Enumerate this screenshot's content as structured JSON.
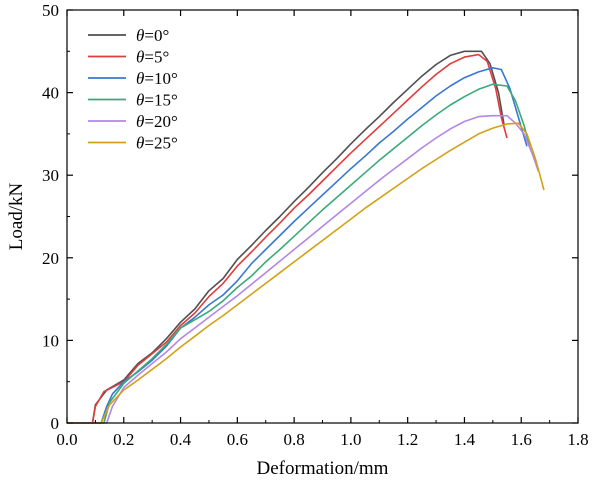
{
  "chart_data": {
    "type": "line",
    "title": "",
    "xlabel": "Deformation/mm",
    "ylabel": "Load/kN",
    "xlim": [
      0,
      1.8
    ],
    "ylim": [
      0,
      50
    ],
    "xticks": [
      "0.0",
      "0.2",
      "0.4",
      "0.6",
      "0.8",
      "1.0",
      "1.2",
      "1.4",
      "1.6",
      "1.8"
    ],
    "yticks": [
      "0",
      "10",
      "20",
      "30",
      "40",
      "50"
    ],
    "grid": false,
    "legend_position": "top-left",
    "series": [
      {
        "name": "θ=0°",
        "legend_prefix": "θ",
        "legend_suffix": "=0°",
        "color": "#505050",
        "points": [
          [
            0.0,
            0
          ],
          [
            0.09,
            0
          ],
          [
            0.1,
            2.2
          ],
          [
            0.14,
            4.0
          ],
          [
            0.2,
            5.2
          ],
          [
            0.25,
            7.2
          ],
          [
            0.3,
            8.5
          ],
          [
            0.35,
            10.2
          ],
          [
            0.4,
            12.2
          ],
          [
            0.45,
            13.8
          ],
          [
            0.5,
            16.0
          ],
          [
            0.55,
            17.5
          ],
          [
            0.6,
            19.8
          ],
          [
            0.65,
            21.5
          ],
          [
            0.7,
            23.3
          ],
          [
            0.75,
            25.0
          ],
          [
            0.8,
            26.8
          ],
          [
            0.85,
            28.5
          ],
          [
            0.9,
            30.3
          ],
          [
            0.95,
            32.0
          ],
          [
            1.0,
            33.8
          ],
          [
            1.05,
            35.5
          ],
          [
            1.1,
            37.1
          ],
          [
            1.15,
            38.8
          ],
          [
            1.2,
            40.4
          ],
          [
            1.25,
            42.0
          ],
          [
            1.3,
            43.4
          ],
          [
            1.35,
            44.5
          ],
          [
            1.4,
            45.0
          ],
          [
            1.46,
            45.0
          ],
          [
            1.49,
            43.5
          ],
          [
            1.52,
            40.0
          ],
          [
            1.54,
            36.0
          ]
        ]
      },
      {
        "name": "θ=5°",
        "legend_prefix": "θ",
        "legend_suffix": "=5°",
        "color": "#e03c3c",
        "points": [
          [
            0.0,
            0
          ],
          [
            0.09,
            0
          ],
          [
            0.1,
            2.0
          ],
          [
            0.13,
            3.8
          ],
          [
            0.2,
            5.0
          ],
          [
            0.25,
            7.0
          ],
          [
            0.3,
            8.4
          ],
          [
            0.35,
            9.8
          ],
          [
            0.4,
            11.8
          ],
          [
            0.45,
            13.3
          ],
          [
            0.5,
            15.3
          ],
          [
            0.55,
            16.9
          ],
          [
            0.6,
            19.0
          ],
          [
            0.65,
            20.7
          ],
          [
            0.7,
            22.5
          ],
          [
            0.75,
            24.2
          ],
          [
            0.8,
            26.0
          ],
          [
            0.85,
            27.6
          ],
          [
            0.9,
            29.3
          ],
          [
            0.95,
            31.0
          ],
          [
            1.0,
            32.7
          ],
          [
            1.05,
            34.3
          ],
          [
            1.1,
            35.9
          ],
          [
            1.15,
            37.5
          ],
          [
            1.2,
            39.1
          ],
          [
            1.25,
            40.7
          ],
          [
            1.3,
            42.2
          ],
          [
            1.35,
            43.5
          ],
          [
            1.4,
            44.3
          ],
          [
            1.45,
            44.6
          ],
          [
            1.48,
            43.8
          ],
          [
            1.51,
            40.5
          ],
          [
            1.53,
            37.0
          ],
          [
            1.55,
            34.5
          ]
        ]
      },
      {
        "name": "θ=10°",
        "legend_prefix": "θ",
        "legend_suffix": "=10°",
        "color": "#3a78d0",
        "points": [
          [
            0.0,
            0
          ],
          [
            0.12,
            0
          ],
          [
            0.14,
            2.0
          ],
          [
            0.16,
            3.5
          ],
          [
            0.2,
            5.0
          ],
          [
            0.25,
            6.2
          ],
          [
            0.3,
            7.6
          ],
          [
            0.35,
            9.3
          ],
          [
            0.4,
            11.5
          ],
          [
            0.45,
            12.8
          ],
          [
            0.5,
            14.3
          ],
          [
            0.55,
            15.5
          ],
          [
            0.6,
            17.2
          ],
          [
            0.65,
            19.3
          ],
          [
            0.7,
            21.0
          ],
          [
            0.75,
            22.7
          ],
          [
            0.8,
            24.4
          ],
          [
            0.85,
            26.0
          ],
          [
            0.9,
            27.6
          ],
          [
            0.95,
            29.2
          ],
          [
            1.0,
            30.8
          ],
          [
            1.05,
            32.3
          ],
          [
            1.1,
            33.9
          ],
          [
            1.15,
            35.3
          ],
          [
            1.2,
            36.8
          ],
          [
            1.25,
            38.2
          ],
          [
            1.3,
            39.6
          ],
          [
            1.35,
            40.8
          ],
          [
            1.4,
            41.8
          ],
          [
            1.45,
            42.5
          ],
          [
            1.5,
            43.0
          ],
          [
            1.53,
            42.8
          ],
          [
            1.56,
            40.5
          ],
          [
            1.59,
            37.0
          ],
          [
            1.62,
            33.5
          ]
        ]
      },
      {
        "name": "θ=15°",
        "legend_prefix": "θ",
        "legend_suffix": "=15°",
        "color": "#3aaa78",
        "points": [
          [
            0.0,
            0
          ],
          [
            0.13,
            0
          ],
          [
            0.15,
            2.5
          ],
          [
            0.2,
            4.8
          ],
          [
            0.25,
            6.3
          ],
          [
            0.3,
            7.8
          ],
          [
            0.35,
            9.5
          ],
          [
            0.4,
            11.5
          ],
          [
            0.45,
            12.5
          ],
          [
            0.5,
            13.5
          ],
          [
            0.55,
            14.8
          ],
          [
            0.6,
            16.4
          ],
          [
            0.65,
            17.8
          ],
          [
            0.7,
            19.5
          ],
          [
            0.75,
            21.0
          ],
          [
            0.8,
            22.6
          ],
          [
            0.85,
            24.2
          ],
          [
            0.9,
            25.8
          ],
          [
            0.95,
            27.3
          ],
          [
            1.0,
            28.8
          ],
          [
            1.05,
            30.3
          ],
          [
            1.1,
            31.8
          ],
          [
            1.15,
            33.2
          ],
          [
            1.2,
            34.6
          ],
          [
            1.25,
            36.0
          ],
          [
            1.3,
            37.3
          ],
          [
            1.35,
            38.5
          ],
          [
            1.4,
            39.5
          ],
          [
            1.45,
            40.4
          ],
          [
            1.5,
            41.0
          ],
          [
            1.55,
            40.8
          ],
          [
            1.58,
            39.0
          ],
          [
            1.61,
            36.0
          ],
          [
            1.63,
            33.5
          ]
        ]
      },
      {
        "name": "θ=20°",
        "legend_prefix": "θ",
        "legend_suffix": "=20°",
        "color": "#b387e6",
        "points": [
          [
            0.0,
            0
          ],
          [
            0.14,
            0
          ],
          [
            0.16,
            2.0
          ],
          [
            0.2,
            4.3
          ],
          [
            0.25,
            5.8
          ],
          [
            0.3,
            7.2
          ],
          [
            0.35,
            8.6
          ],
          [
            0.4,
            10.2
          ],
          [
            0.45,
            11.5
          ],
          [
            0.5,
            12.8
          ],
          [
            0.55,
            14.1
          ],
          [
            0.6,
            15.4
          ],
          [
            0.65,
            16.8
          ],
          [
            0.7,
            18.2
          ],
          [
            0.75,
            19.6
          ],
          [
            0.8,
            21.0
          ],
          [
            0.85,
            22.4
          ],
          [
            0.9,
            23.8
          ],
          [
            0.95,
            25.2
          ],
          [
            1.0,
            26.6
          ],
          [
            1.05,
            28.0
          ],
          [
            1.1,
            29.4
          ],
          [
            1.15,
            30.7
          ],
          [
            1.2,
            32.0
          ],
          [
            1.25,
            33.3
          ],
          [
            1.3,
            34.5
          ],
          [
            1.35,
            35.6
          ],
          [
            1.4,
            36.5
          ],
          [
            1.45,
            37.1
          ],
          [
            1.5,
            37.2
          ],
          [
            1.55,
            37.2
          ],
          [
            1.58,
            36.3
          ],
          [
            1.61,
            35.0
          ],
          [
            1.64,
            32.5
          ],
          [
            1.66,
            30.5
          ]
        ]
      },
      {
        "name": "θ=25°",
        "legend_prefix": "θ",
        "legend_suffix": "=25°",
        "color": "#d4a017",
        "points": [
          [
            0.0,
            0
          ],
          [
            0.12,
            0
          ],
          [
            0.15,
            2.2
          ],
          [
            0.2,
            4.0
          ],
          [
            0.25,
            5.2
          ],
          [
            0.3,
            6.5
          ],
          [
            0.35,
            7.8
          ],
          [
            0.4,
            9.2
          ],
          [
            0.45,
            10.5
          ],
          [
            0.5,
            11.8
          ],
          [
            0.55,
            13.0
          ],
          [
            0.6,
            14.3
          ],
          [
            0.65,
            15.6
          ],
          [
            0.7,
            16.9
          ],
          [
            0.75,
            18.2
          ],
          [
            0.8,
            19.5
          ],
          [
            0.85,
            20.8
          ],
          [
            0.9,
            22.1
          ],
          [
            0.95,
            23.4
          ],
          [
            1.0,
            24.7
          ],
          [
            1.05,
            26.0
          ],
          [
            1.1,
            27.2
          ],
          [
            1.15,
            28.4
          ],
          [
            1.2,
            29.6
          ],
          [
            1.25,
            30.8
          ],
          [
            1.3,
            31.9
          ],
          [
            1.35,
            33.0
          ],
          [
            1.4,
            34.0
          ],
          [
            1.45,
            35.0
          ],
          [
            1.5,
            35.7
          ],
          [
            1.55,
            36.2
          ],
          [
            1.59,
            36.3
          ],
          [
            1.62,
            35.0
          ],
          [
            1.65,
            32.0
          ],
          [
            1.67,
            29.5
          ],
          [
            1.68,
            28.2
          ]
        ]
      }
    ]
  }
}
